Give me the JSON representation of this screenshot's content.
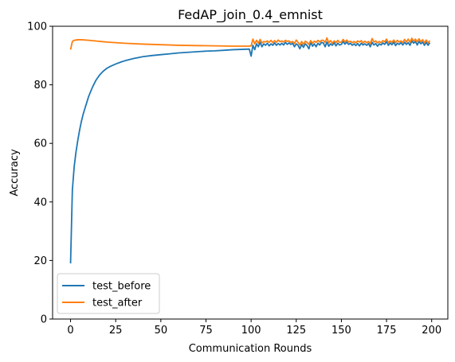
{
  "chart_data": {
    "type": "line",
    "title": "FedAP_join_0.4_emnist",
    "xlabel": "Communication Rounds",
    "ylabel": "Accuracy",
    "xlim": [
      -9.95,
      208.95
    ],
    "ylim": [
      0,
      100
    ],
    "xticks": [
      0,
      25,
      50,
      75,
      100,
      125,
      150,
      175,
      200
    ],
    "yticks": [
      0,
      20,
      40,
      60,
      80,
      100
    ],
    "grid": false,
    "legend_position": "lower-left",
    "series": [
      {
        "name": "test_before",
        "color": "#1f77b4",
        "x": [
          0,
          1,
          2,
          3,
          4,
          5,
          6,
          7,
          8,
          9,
          10,
          12,
          14,
          16,
          18,
          20,
          22,
          25,
          28,
          30,
          35,
          40,
          45,
          50,
          55,
          60,
          65,
          70,
          75,
          80,
          85,
          90,
          95,
          99,
          100,
          101,
          102,
          103,
          104,
          105,
          106,
          107,
          108,
          109,
          110,
          111,
          112,
          113,
          114,
          115,
          116,
          117,
          118,
          119,
          120,
          121,
          122,
          123,
          124,
          125,
          126,
          127,
          128,
          129,
          130,
          131,
          132,
          133,
          134,
          135,
          136,
          137,
          138,
          139,
          140,
          141,
          142,
          143,
          144,
          145,
          146,
          147,
          148,
          149,
          150,
          151,
          152,
          153,
          154,
          155,
          156,
          157,
          158,
          159,
          160,
          161,
          162,
          163,
          164,
          165,
          166,
          167,
          168,
          169,
          170,
          171,
          172,
          173,
          174,
          175,
          176,
          177,
          178,
          179,
          180,
          181,
          182,
          183,
          184,
          185,
          186,
          187,
          188,
          189,
          190,
          191,
          192,
          193,
          194,
          195,
          196,
          197,
          198,
          199
        ],
        "y": [
          19,
          44,
          52,
          57,
          61,
          64.5,
          67.5,
          70,
          72,
          74,
          76,
          79,
          81.5,
          83.3,
          84.6,
          85.6,
          86.3,
          87.1,
          87.8,
          88.2,
          89,
          89.6,
          90.0,
          90.3,
          90.6,
          90.9,
          91.1,
          91.3,
          91.5,
          91.6,
          91.8,
          92.0,
          92.1,
          92.2,
          89.8,
          93.5,
          92.0,
          94.0,
          93.0,
          94.5,
          93.0,
          94.0,
          93.5,
          94.2,
          93.3,
          94.0,
          93.5,
          94.3,
          93.5,
          94.1,
          93.6,
          94.2,
          93.6,
          94.5,
          93.8,
          94.3,
          93.8,
          94.2,
          93.0,
          94.0,
          93.5,
          92.3,
          93.8,
          92.8,
          94.0,
          93.4,
          92.3,
          94.5,
          93.2,
          94.0,
          93.0,
          94.2,
          93.6,
          94.5,
          94.3,
          93.0,
          94.6,
          93.2,
          94.0,
          93.5,
          94.4,
          93.3,
          94.2,
          93.6,
          93.8,
          94.8,
          93.9,
          94.6,
          93.8,
          94.2,
          93.5,
          94.0,
          93.4,
          94.1,
          93.3,
          94.2,
          93.6,
          94.0,
          93.5,
          94.1,
          93.0,
          94.5,
          93.6,
          94.1,
          93.2,
          94.0,
          93.6,
          94.3,
          93.8,
          94.8,
          93.5,
          94.3,
          93.7,
          94.6,
          93.4,
          94.2,
          93.8,
          94.4,
          93.6,
          94.5,
          93.8,
          94.4,
          93.5,
          95.0,
          94.2,
          94.8,
          93.6,
          94.8,
          94.0,
          94.6,
          93.5,
          94.5,
          93.5,
          94.4
        ]
      },
      {
        "name": "test_after",
        "color": "#ff7f0e",
        "x": [
          0,
          1,
          2,
          3,
          4,
          5,
          6,
          8,
          10,
          15,
          20,
          25,
          30,
          40,
          50,
          60,
          70,
          80,
          90,
          99,
          100,
          101,
          102,
          103,
          104,
          105,
          106,
          107,
          108,
          109,
          110,
          111,
          112,
          113,
          114,
          115,
          116,
          117,
          118,
          119,
          120,
          121,
          122,
          123,
          124,
          125,
          126,
          127,
          128,
          129,
          130,
          131,
          132,
          133,
          134,
          135,
          136,
          137,
          138,
          139,
          140,
          141,
          142,
          143,
          144,
          145,
          146,
          147,
          148,
          149,
          150,
          151,
          152,
          153,
          154,
          155,
          156,
          157,
          158,
          159,
          160,
          161,
          162,
          163,
          164,
          165,
          166,
          167,
          168,
          169,
          170,
          171,
          172,
          173,
          174,
          175,
          176,
          177,
          178,
          179,
          180,
          181,
          182,
          183,
          184,
          185,
          186,
          187,
          188,
          189,
          190,
          191,
          192,
          193,
          194,
          195,
          196,
          197,
          198,
          199
        ],
        "y": [
          92,
          94.8,
          95.2,
          95.3,
          95.4,
          95.4,
          95.4,
          95.3,
          95.2,
          94.9,
          94.6,
          94.4,
          94.2,
          93.9,
          93.7,
          93.5,
          93.4,
          93.3,
          93.2,
          93.2,
          93.3,
          95.6,
          94.0,
          95.2,
          94.2,
          95.5,
          94.3,
          94.8,
          94.6,
          95.0,
          94.5,
          95.2,
          94.4,
          95.1,
          94.5,
          95.3,
          94.7,
          95.0,
          94.6,
          95.2,
          94.8,
          95.0,
          94.5,
          94.8,
          94.1,
          95.3,
          94.5,
          93.6,
          94.8,
          93.8,
          94.9,
          94.5,
          93.8,
          95.1,
          94.2,
          94.9,
          94.5,
          95.2,
          94.6,
          95.2,
          95.2,
          94.5,
          96.0,
          94.3,
          95.1,
          94.2,
          95.0,
          94.4,
          95.2,
          94.5,
          94.6,
          95.5,
          94.7,
          95.3,
          94.6,
          94.9,
          94.4,
          94.8,
          94.3,
          95.0,
          94.6,
          95.1,
          94.3,
          94.9,
          94.4,
          94.8,
          94.0,
          95.8,
          94.6,
          95.0,
          94.3,
          94.8,
          94.4,
          95.1,
          94.7,
          95.6,
          94.4,
          95.0,
          94.5,
          95.3,
          94.4,
          95.2,
          94.6,
          95.0,
          94.5,
          95.5,
          94.6,
          95.6,
          94.5,
          95.9,
          94.9,
          95.6,
          94.7,
          95.7,
          94.7,
          95.4,
          94.4,
          95.3,
          94.3,
          95.1
        ]
      }
    ]
  }
}
